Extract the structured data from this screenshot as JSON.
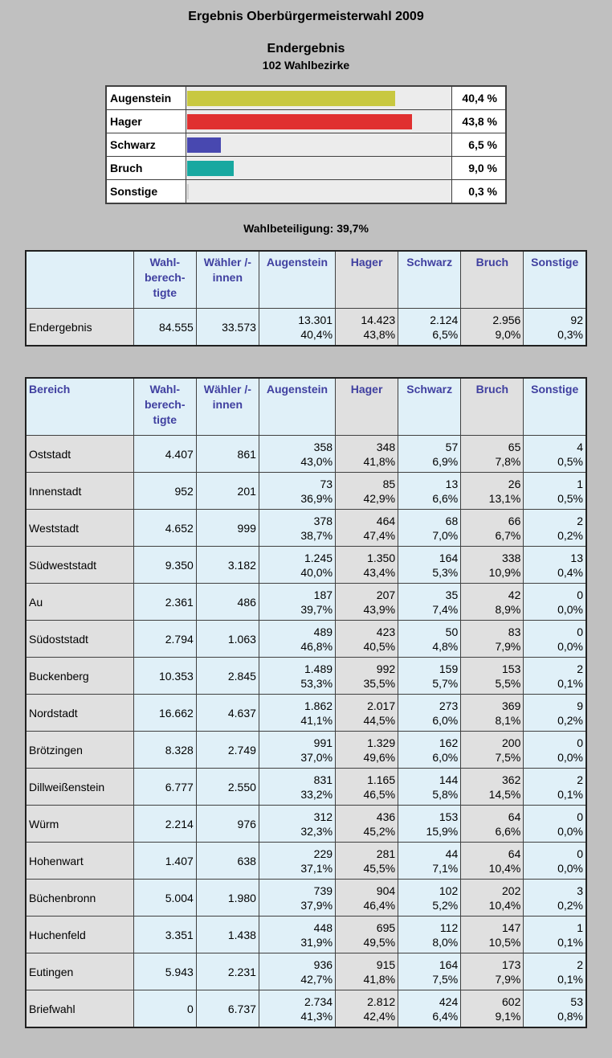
{
  "title": "Ergebnis Oberbürgermeisterwahl 2009",
  "subtitle": "Endergebnis",
  "districts_count": "102 Wahlbezirke",
  "summary_bars": [
    {
      "name": "Augenstein",
      "percent_label": "40,4 %",
      "share": 0.404,
      "color": "#c8c840"
    },
    {
      "name": "Hager",
      "percent_label": "43,8 %",
      "share": 0.438,
      "color": "#e03030"
    },
    {
      "name": "Schwarz",
      "percent_label": "6,5 %",
      "share": 0.065,
      "color": "#4848b0"
    },
    {
      "name": "Bruch",
      "percent_label": "9,0 %",
      "share": 0.09,
      "color": "#18a8a0"
    },
    {
      "name": "Sonstige",
      "percent_label": "0,3 %",
      "share": 0.003,
      "color": "#d0d0d0"
    }
  ],
  "turnout": "Wahlbeteiligung: 39,7%",
  "headers": {
    "empty": "",
    "bereich": "Bereich",
    "wahlberechtigte": "Wahl- berech- tigte",
    "waehler": "Wähler /-innen",
    "augenstein": "Augenstein",
    "hager": "Hager",
    "schwarz": "Schwarz",
    "bruch": "Bruch",
    "sonstige": "Sonstige"
  },
  "total_row": {
    "name": "Endergebnis",
    "berechtigte": "84.555",
    "waehler": "33.573",
    "cells": [
      [
        "13.301",
        "40,4%"
      ],
      [
        "14.423",
        "43,8%"
      ],
      [
        "2.124",
        "6,5%"
      ],
      [
        "2.956",
        "9,0%"
      ],
      [
        "92",
        "0,3%"
      ]
    ]
  },
  "rows": [
    {
      "name": "Oststadt",
      "berechtigte": "4.407",
      "waehler": "861",
      "cells": [
        [
          "358",
          "43,0%"
        ],
        [
          "348",
          "41,8%"
        ],
        [
          "57",
          "6,9%"
        ],
        [
          "65",
          "7,8%"
        ],
        [
          "4",
          "0,5%"
        ]
      ]
    },
    {
      "name": "Innenstadt",
      "berechtigte": "952",
      "waehler": "201",
      "cells": [
        [
          "73",
          "36,9%"
        ],
        [
          "85",
          "42,9%"
        ],
        [
          "13",
          "6,6%"
        ],
        [
          "26",
          "13,1%"
        ],
        [
          "1",
          "0,5%"
        ]
      ]
    },
    {
      "name": "Weststadt",
      "berechtigte": "4.652",
      "waehler": "999",
      "cells": [
        [
          "378",
          "38,7%"
        ],
        [
          "464",
          "47,4%"
        ],
        [
          "68",
          "7,0%"
        ],
        [
          "66",
          "6,7%"
        ],
        [
          "2",
          "0,2%"
        ]
      ]
    },
    {
      "name": "Südweststadt",
      "berechtigte": "9.350",
      "waehler": "3.182",
      "cells": [
        [
          "1.245",
          "40,0%"
        ],
        [
          "1.350",
          "43,4%"
        ],
        [
          "164",
          "5,3%"
        ],
        [
          "338",
          "10,9%"
        ],
        [
          "13",
          "0,4%"
        ]
      ]
    },
    {
      "name": "Au",
      "berechtigte": "2.361",
      "waehler": "486",
      "cells": [
        [
          "187",
          "39,7%"
        ],
        [
          "207",
          "43,9%"
        ],
        [
          "35",
          "7,4%"
        ],
        [
          "42",
          "8,9%"
        ],
        [
          "0",
          "0,0%"
        ]
      ]
    },
    {
      "name": "Südoststadt",
      "berechtigte": "2.794",
      "waehler": "1.063",
      "cells": [
        [
          "489",
          "46,8%"
        ],
        [
          "423",
          "40,5%"
        ],
        [
          "50",
          "4,8%"
        ],
        [
          "83",
          "7,9%"
        ],
        [
          "0",
          "0,0%"
        ]
      ]
    },
    {
      "name": "Buckenberg",
      "berechtigte": "10.353",
      "waehler": "2.845",
      "cells": [
        [
          "1.489",
          "53,3%"
        ],
        [
          "992",
          "35,5%"
        ],
        [
          "159",
          "5,7%"
        ],
        [
          "153",
          "5,5%"
        ],
        [
          "2",
          "0,1%"
        ]
      ]
    },
    {
      "name": "Nordstadt",
      "berechtigte": "16.662",
      "waehler": "4.637",
      "cells": [
        [
          "1.862",
          "41,1%"
        ],
        [
          "2.017",
          "44,5%"
        ],
        [
          "273",
          "6,0%"
        ],
        [
          "369",
          "8,1%"
        ],
        [
          "9",
          "0,2%"
        ]
      ]
    },
    {
      "name": "Brötzingen",
      "berechtigte": "8.328",
      "waehler": "2.749",
      "cells": [
        [
          "991",
          "37,0%"
        ],
        [
          "1.329",
          "49,6%"
        ],
        [
          "162",
          "6,0%"
        ],
        [
          "200",
          "7,5%"
        ],
        [
          "0",
          "0,0%"
        ]
      ]
    },
    {
      "name": "Dillweißenstein",
      "berechtigte": "6.777",
      "waehler": "2.550",
      "cells": [
        [
          "831",
          "33,2%"
        ],
        [
          "1.165",
          "46,5%"
        ],
        [
          "144",
          "5,8%"
        ],
        [
          "362",
          "14,5%"
        ],
        [
          "2",
          "0,1%"
        ]
      ]
    },
    {
      "name": "Würm",
      "berechtigte": "2.214",
      "waehler": "976",
      "cells": [
        [
          "312",
          "32,3%"
        ],
        [
          "436",
          "45,2%"
        ],
        [
          "153",
          "15,9%"
        ],
        [
          "64",
          "6,6%"
        ],
        [
          "0",
          "0,0%"
        ]
      ]
    },
    {
      "name": "Hohenwart",
      "berechtigte": "1.407",
      "waehler": "638",
      "cells": [
        [
          "229",
          "37,1%"
        ],
        [
          "281",
          "45,5%"
        ],
        [
          "44",
          "7,1%"
        ],
        [
          "64",
          "10,4%"
        ],
        [
          "0",
          "0,0%"
        ]
      ]
    },
    {
      "name": "Büchenbronn",
      "berechtigte": "5.004",
      "waehler": "1.980",
      "cells": [
        [
          "739",
          "37,9%"
        ],
        [
          "904",
          "46,4%"
        ],
        [
          "102",
          "5,2%"
        ],
        [
          "202",
          "10,4%"
        ],
        [
          "3",
          "0,2%"
        ]
      ]
    },
    {
      "name": "Huchenfeld",
      "berechtigte": "3.351",
      "waehler": "1.438",
      "cells": [
        [
          "448",
          "31,9%"
        ],
        [
          "695",
          "49,5%"
        ],
        [
          "112",
          "8,0%"
        ],
        [
          "147",
          "10,5%"
        ],
        [
          "1",
          "0,1%"
        ]
      ]
    },
    {
      "name": "Eutingen",
      "berechtigte": "5.943",
      "waehler": "2.231",
      "cells": [
        [
          "936",
          "42,7%"
        ],
        [
          "915",
          "41,8%"
        ],
        [
          "164",
          "7,5%"
        ],
        [
          "173",
          "7,9%"
        ],
        [
          "2",
          "0,1%"
        ]
      ]
    },
    {
      "name": "Briefwahl",
      "berechtigte": "0",
      "waehler": "6.737",
      "cells": [
        [
          "2.734",
          "41,3%"
        ],
        [
          "2.812",
          "42,4%"
        ],
        [
          "424",
          "6,4%"
        ],
        [
          "602",
          "9,1%"
        ],
        [
          "53",
          "0,8%"
        ]
      ]
    }
  ]
}
